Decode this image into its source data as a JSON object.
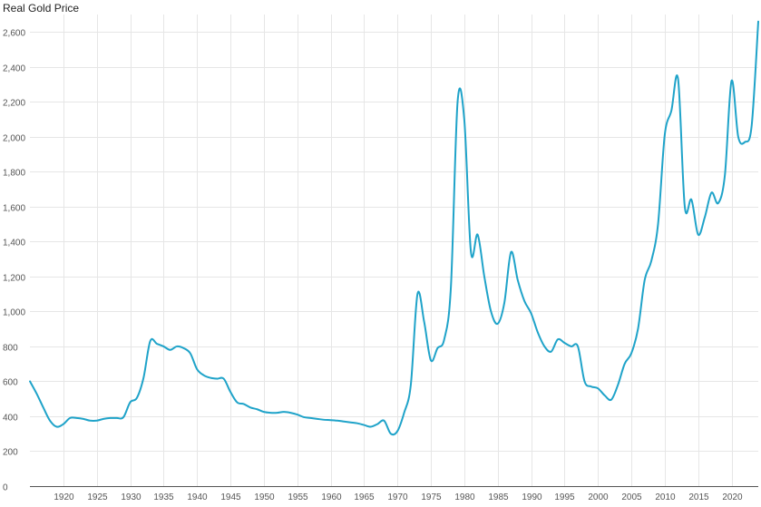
{
  "chart_data": {
    "type": "line",
    "title": "Real Gold Price",
    "xlabel": "",
    "ylabel": "",
    "xlim": [
      1915,
      2024
    ],
    "ylim": [
      0,
      2700
    ],
    "x_ticks": [
      1920,
      1925,
      1930,
      1935,
      1940,
      1945,
      1950,
      1955,
      1960,
      1965,
      1970,
      1975,
      1980,
      1985,
      1990,
      1995,
      2000,
      2005,
      2010,
      2015,
      2020
    ],
    "y_ticks": [
      0,
      200,
      400,
      600,
      800,
      1000,
      1200,
      1400,
      1600,
      1800,
      2000,
      2200,
      2400,
      2600
    ],
    "y_tick_labels": [
      "0",
      "200",
      "400",
      "600",
      "800",
      "1,000",
      "1,200",
      "1,400",
      "1,600",
      "1,800",
      "2,000",
      "2,200",
      "2,400",
      "2,600"
    ],
    "grid": true,
    "color": "#1fa3c9",
    "series": [
      {
        "x": [
          1915,
          1916,
          1917,
          1918,
          1919,
          1920,
          1921,
          1922,
          1923,
          1924,
          1925,
          1926,
          1927,
          1928,
          1929,
          1930,
          1931,
          1932,
          1933,
          1934,
          1935,
          1936,
          1937,
          1938,
          1939,
          1940,
          1941,
          1942,
          1943,
          1944,
          1945,
          1946,
          1947,
          1948,
          1949,
          1950,
          1951,
          1952,
          1953,
          1954,
          1955,
          1956,
          1957,
          1958,
          1959,
          1960,
          1961,
          1962,
          1963,
          1964,
          1965,
          1966,
          1967,
          1968,
          1969,
          1970,
          1971,
          1972,
          1973,
          1974,
          1975,
          1976,
          1977,
          1978,
          1979,
          1980,
          1981,
          1982,
          1983,
          1984,
          1985,
          1986,
          1987,
          1988,
          1989,
          1990,
          1991,
          1992,
          1993,
          1994,
          1995,
          1996,
          1997,
          1998,
          1999,
          2000,
          2001,
          2002,
          2003,
          2004,
          2005,
          2006,
          2007,
          2008,
          2009,
          2010,
          2011,
          2012,
          2013,
          2014,
          2015,
          2016,
          2017,
          2018,
          2019,
          2020,
          2021,
          2022,
          2023,
          2024
        ],
        "y": [
          600,
          530,
          450,
          375,
          340,
          355,
          390,
          390,
          385,
          375,
          375,
          385,
          390,
          390,
          395,
          480,
          505,
          620,
          830,
          815,
          800,
          780,
          800,
          790,
          760,
          670,
          635,
          620,
          615,
          615,
          540,
          480,
          470,
          450,
          440,
          425,
          420,
          420,
          425,
          420,
          410,
          395,
          390,
          385,
          380,
          378,
          375,
          370,
          365,
          360,
          350,
          340,
          355,
          375,
          300,
          315,
          420,
          580,
          1100,
          940,
          720,
          790,
          840,
          1140,
          2200,
          2100,
          1340,
          1440,
          1200,
          1000,
          930,
          1050,
          1340,
          1180,
          1060,
          990,
          880,
          800,
          770,
          840,
          820,
          800,
          800,
          600,
          570,
          560,
          520,
          495,
          580,
          700,
          760,
          900,
          1180,
          1290,
          1500,
          2010,
          2150,
          2330,
          1600,
          1640,
          1440,
          1540,
          1680,
          1620,
          1780,
          2320,
          2000,
          1970,
          2060,
          2660
        ]
      }
    ]
  }
}
